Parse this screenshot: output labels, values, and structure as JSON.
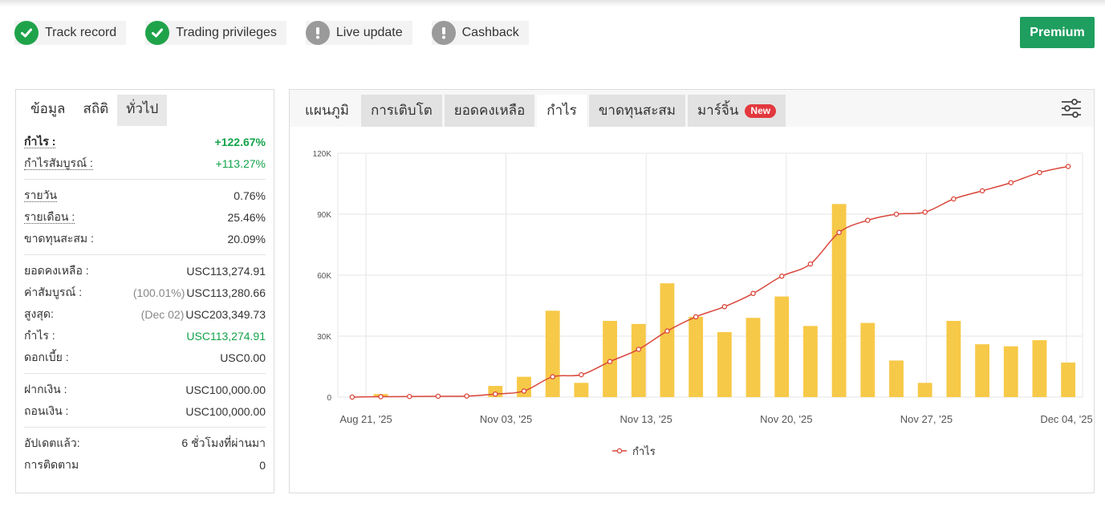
{
  "badges": [
    {
      "label": "Track record",
      "status": "ok"
    },
    {
      "label": "Trading privileges",
      "status": "ok"
    },
    {
      "label": "Live update",
      "status": "warn"
    },
    {
      "label": "Cashback",
      "status": "warn"
    }
  ],
  "premium_label": "Premium",
  "left_panel": {
    "tabs": [
      "ข้อมูล",
      "สถิติ",
      "ทั่วไป"
    ],
    "groups": {
      "g1": [
        {
          "label": "กำไร :",
          "value": "+122.67%"
        },
        {
          "label": "กำไรสัมบูรณ์ :",
          "value": "+113.27%"
        }
      ],
      "g2": [
        {
          "label": "รายวัน",
          "value": "0.76%"
        },
        {
          "label": "รายเดือน :",
          "value": "25.46%"
        },
        {
          "label": "ขาดทุนสะสม :",
          "value": "20.09%"
        }
      ],
      "g3": [
        {
          "label": "ยอดคงเหลือ :",
          "value": "USC113,274.91"
        },
        {
          "label": "ค่าสัมบูรณ์ :",
          "prefix": "(100.01%)",
          "value": "USC113,280.66"
        },
        {
          "label": "สูงสุด:",
          "prefix": "(Dec 02)",
          "value": "USC203,349.73"
        },
        {
          "label": "กำไร :",
          "value": "USC113,274.91"
        },
        {
          "label": "ดอกเบี้ย :",
          "value": "USC0.00"
        }
      ],
      "g4": [
        {
          "label": "ฝากเงิน :",
          "value": "USC100,000.00"
        },
        {
          "label": "ถอนเงิน :",
          "value": "USC100,000.00"
        }
      ],
      "g5": [
        {
          "label": "อัปเดตแล้ว:",
          "value": "6 ชั่วโมงที่ผ่านมา"
        },
        {
          "label": "การติดตาม",
          "value": "0"
        }
      ]
    }
  },
  "right_panel": {
    "tabs": [
      "แผนภูมิ",
      "การเติบโต",
      "ยอดคงเหลือ",
      "กำไร",
      "ขาดทุนสะสม",
      "มาร์จิ้น"
    ],
    "new_badge": "New",
    "settings_icon": "sliders-icon"
  },
  "colors": {
    "green": "#13a34a",
    "premium": "#1e9e5f",
    "bar": "#f7c948",
    "line": "#d9473c",
    "new": "#e2383e"
  },
  "chart_data": {
    "type": "bar",
    "legend": "กำไร",
    "y_ticks": [
      "0",
      "30K",
      "60K",
      "90K",
      "120K"
    ],
    "ylim": [
      0,
      120000
    ],
    "x_labels": [
      "Aug 21, '25",
      "Nov 03, '25",
      "Nov 13, '25",
      "Nov 20, '25",
      "Nov 27, '25",
      "Dec 04, '25"
    ],
    "bars": [
      0,
      1500,
      0,
      0,
      0,
      5500,
      10000,
      42500,
      7000,
      37500,
      36000,
      56000,
      39500,
      32000,
      39000,
      49500,
      35000,
      95000,
      36500,
      18000,
      7000,
      37500,
      26000,
      25000,
      28000,
      17000
    ],
    "line": [
      0,
      200,
      300,
      400,
      500,
      1500,
      3000,
      10000,
      11000,
      17500,
      23500,
      32500,
      39500,
      44500,
      51000,
      59500,
      65500,
      81000,
      87000,
      90000,
      91000,
      97500,
      101500,
      105500,
      110500,
      113500
    ],
    "grid": true,
    "legend_position": "bottom-center"
  }
}
